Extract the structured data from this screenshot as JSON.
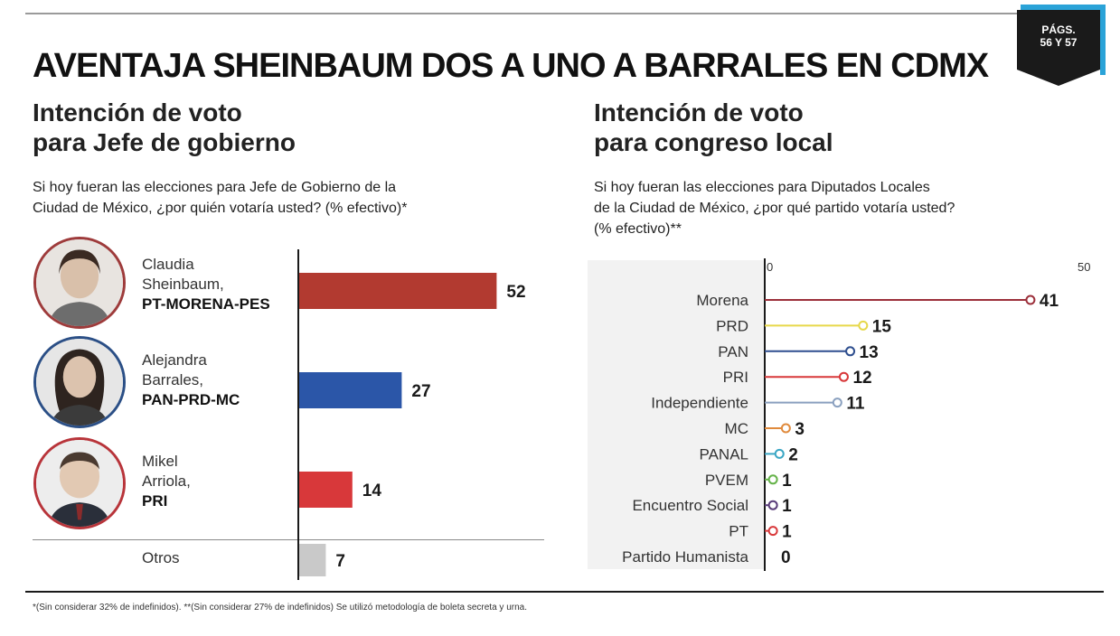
{
  "page_tag": {
    "line1": "PÁGS.",
    "line2": "56 Y 57"
  },
  "headline": "AVENTAJA SHEINBAUM DOS A UNO A BARRALES EN CDMX",
  "left": {
    "title_line1": "Intención de voto",
    "title_line2": "para  Jefe de gobierno",
    "question_line1": "Si hoy fueran las elecciones para Jefe de Gobierno de la",
    "question_line2": "Ciudad de México, ¿por quién votaría usted? (% efectivo)*",
    "candidates": [
      {
        "name1": "Claudia",
        "name2": "Sheinbaum,",
        "party": "PT-MORENA-PES"
      },
      {
        "name1": "Alejandra",
        "name2": "Barrales,",
        "party": "PAN-PRD-MC"
      },
      {
        "name1": "Mikel",
        "name2": "Arriola,",
        "party": "PRI"
      }
    ],
    "others_label": "Otros"
  },
  "right": {
    "title_line1": "Intención de voto",
    "title_line2": "para congreso local",
    "question_line1": "Si hoy fueran las elecciones para Diputados Locales",
    "question_line2": "de la Ciudad de México, ¿por qué partido votaría usted?",
    "question_line3": "(% efectivo)**"
  },
  "footnote": "*(Sin considerar 32% de indefinidos).   **(Sin considerar 27% de indefinidos)   Se utilizó metodología de boleta secreta y urna.",
  "chart_data": [
    {
      "type": "bar",
      "orientation": "horizontal",
      "categories": [
        "Claudia Sheinbaum, PT-MORENA-PES",
        "Alejandra Barrales, PAN-PRD-MC",
        "Mikel Arriola, PRI",
        "Otros"
      ],
      "values": [
        52,
        27,
        14,
        7
      ],
      "colors": [
        "#b23a30",
        "#2b56a8",
        "#d8383a",
        "#c9c9c9"
      ],
      "xlim": [
        0,
        60
      ]
    },
    {
      "type": "bar",
      "orientation": "horizontal",
      "style": "lollipop",
      "categories": [
        "Morena",
        "PRD",
        "PAN",
        "PRI",
        "Independiente",
        "MC",
        "PANAL",
        "PVEM",
        "Encuentro Social",
        "PT",
        "Partido Humanista"
      ],
      "values": [
        41,
        15,
        13,
        12,
        11,
        3,
        2,
        1,
        1,
        1,
        0
      ],
      "colors": [
        "#9c2f3a",
        "#e6d84a",
        "#2f4f8f",
        "#d8383a",
        "#8aa0bf",
        "#e08a3c",
        "#3aa6c4",
        "#66b34a",
        "#5a3d7a",
        "#d8383a",
        "#888888"
      ],
      "xticks": [
        "0",
        "50"
      ],
      "xlim": [
        0,
        50
      ]
    }
  ]
}
